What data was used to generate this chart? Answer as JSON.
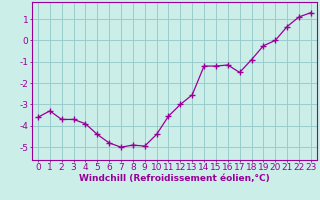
{
  "x": [
    0,
    1,
    2,
    3,
    4,
    5,
    6,
    7,
    8,
    9,
    10,
    11,
    12,
    13,
    14,
    15,
    16,
    17,
    18,
    19,
    20,
    21,
    22,
    23
  ],
  "y": [
    -3.6,
    -3.3,
    -3.7,
    -3.7,
    -3.9,
    -4.4,
    -4.8,
    -5.0,
    -4.9,
    -4.95,
    -4.4,
    -3.55,
    -3.0,
    -2.55,
    -1.2,
    -1.2,
    -1.15,
    -1.5,
    -0.9,
    -0.25,
    0.0,
    0.65,
    1.1,
    1.3
  ],
  "line_color": "#990099",
  "marker": "+",
  "marker_size": 4,
  "bg_color": "#cceee8",
  "grid_color": "#99cccc",
  "axis_color": "#990099",
  "tick_label_color": "#990099",
  "xlabel": "Windchill (Refroidissement éolien,°C)",
  "xlabel_color": "#990099",
  "xlim": [
    -0.5,
    23.5
  ],
  "ylim": [
    -5.6,
    1.8
  ],
  "yticks": [
    -5,
    -4,
    -3,
    -2,
    -1,
    0,
    1
  ],
  "xticks": [
    0,
    1,
    2,
    3,
    4,
    5,
    6,
    7,
    8,
    9,
    10,
    11,
    12,
    13,
    14,
    15,
    16,
    17,
    18,
    19,
    20,
    21,
    22,
    23
  ],
  "font_size": 6.5
}
